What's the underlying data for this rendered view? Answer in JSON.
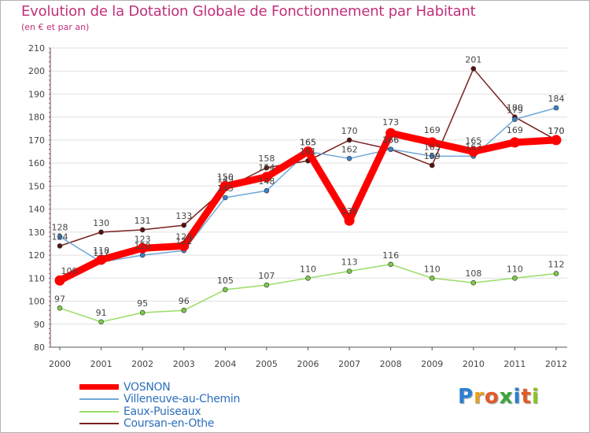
{
  "header": {
    "title": "Evolution de la Dotation Globale de Fonctionnement par Habitant",
    "subtitle": "(en € et par an)"
  },
  "chart_data": {
    "type": "line",
    "title": "Evolution de la Dotation Globale de Fonctionnement par Habitant",
    "subtitle": "(en € et par an)",
    "xlabel": "",
    "ylabel": "",
    "ylim": [
      80,
      210
    ],
    "yticks": [
      80,
      90,
      100,
      110,
      120,
      130,
      140,
      150,
      160,
      170,
      180,
      190,
      200,
      210
    ],
    "x": [
      "2000",
      "2001",
      "2002",
      "2003",
      "2004",
      "2005",
      "2006",
      "2007",
      "2008",
      "2009",
      "2010",
      "2011",
      "2012"
    ],
    "grid": "horizontal",
    "legend_position": "bottom-left",
    "series": [
      {
        "name": "VOSNON",
        "color": "#ff0000",
        "values": [
          109,
          118,
          123,
          124,
          150,
          154,
          165,
          135,
          173,
          169,
          165,
          169,
          170
        ],
        "labels": [
          "109",
          "118",
          "123",
          "124",
          "150",
          "154",
          "165",
          "135",
          "173",
          "169",
          "165",
          "169",
          "170"
        ]
      },
      {
        "name": "Villeneuve-au-Chemin",
        "color": "#6fa8d8",
        "values": [
          128,
          117,
          120,
          122,
          145,
          148,
          165,
          162,
          166,
          163,
          163,
          179,
          184
        ],
        "labels": [
          "128",
          "117",
          "120",
          "122",
          "145",
          "148",
          "165",
          "162",
          "166",
          "163",
          "163",
          "179",
          "184"
        ]
      },
      {
        "name": "Eaux-Puiseaux",
        "color": "#99dd66",
        "values": [
          97,
          91,
          95,
          96,
          105,
          107,
          110,
          113,
          116,
          110,
          108,
          110,
          112
        ],
        "labels": [
          "97",
          "91",
          "95",
          "96",
          "105",
          "107",
          "110",
          "113",
          "116",
          "110",
          "108",
          "110",
          "112"
        ]
      },
      {
        "name": "Coursan-en-Othe",
        "color": "#7a2020",
        "values": [
          124,
          130,
          131,
          133,
          149,
          158,
          161,
          170,
          166,
          159,
          201,
          180,
          170
        ],
        "labels": [
          "124",
          "130",
          "131",
          "133",
          "149",
          "158",
          "161",
          "170",
          "166",
          "159",
          "201",
          "180",
          "170"
        ]
      }
    ]
  },
  "legend": {
    "items": [
      {
        "label": "VOSNON",
        "color": "#ff0000"
      },
      {
        "label": "Villeneuve-au-Chemin",
        "color": "#6fa8d8"
      },
      {
        "label": "Eaux-Puiseaux",
        "color": "#99dd66"
      },
      {
        "label": "Coursan-en-Othe",
        "color": "#7a2020"
      }
    ]
  },
  "logo": {
    "letters": [
      "P",
      "r",
      "o",
      "x",
      "i",
      "t",
      "i"
    ],
    "colors": [
      "#2a7fd4",
      "#e8a020",
      "#e35a2a",
      "#3aa63a",
      "#2a7fd4",
      "#e35a2a",
      "#8fc31f"
    ]
  }
}
